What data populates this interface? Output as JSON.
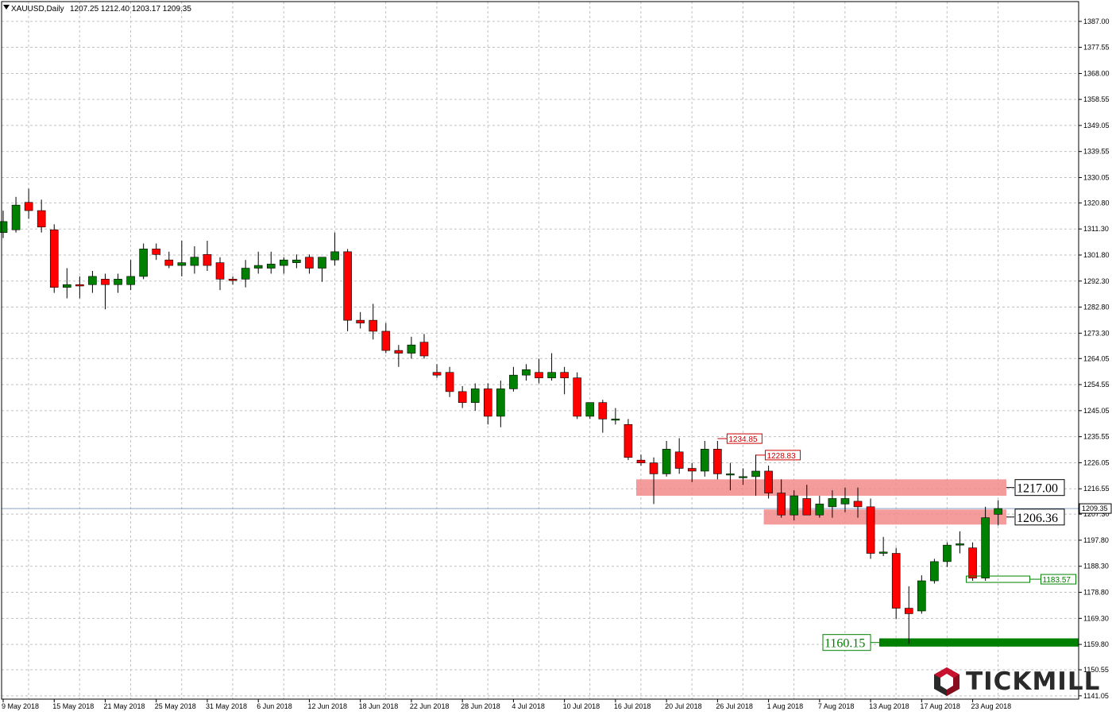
{
  "chart_data": {
    "type": "candlestick",
    "symbol_label": "XAUUSD,Daily",
    "ohlc_label": "1207.25 1212.40 1203.17 1209.35",
    "ylim": [
      1141.0,
      1389.0
    ],
    "y_ticks": [
      "1387.00",
      "1377.55",
      "1368.00",
      "1358.55",
      "1349.05",
      "1339.55",
      "1330.05",
      "1320.80",
      "1311.30",
      "1301.80",
      "1292.30",
      "1282.80",
      "1273.30",
      "1264.05",
      "1254.55",
      "1245.05",
      "1235.55",
      "1226.05",
      "1216.55",
      "1207.30",
      "1197.80",
      "1188.30",
      "1178.80",
      "1169.30",
      "1159.80",
      "1150.55",
      "1141.05"
    ],
    "x_ticks": [
      "9 May 2018",
      "15 May 2018",
      "21 May 2018",
      "25 May 2018",
      "31 May 2018",
      "6 Jun 2018",
      "12 Jun 2018",
      "18 Jun 2018",
      "22 Jun 2018",
      "28 Jun 2018",
      "4 Jul 2018",
      "10 Jul 2018",
      "16 Jul 2018",
      "20 Jul 2018",
      "26 Jul 2018",
      "1 Aug 2018",
      "7 Aug 2018",
      "13 Aug 2018",
      "17 Aug 2018",
      "23 Aug 2018"
    ],
    "candles": [
      {
        "o": 1310.0,
        "h": 1318.0,
        "l": 1308.0,
        "c": 1314.0
      },
      {
        "o": 1311.0,
        "h": 1323.0,
        "l": 1310.0,
        "c": 1320.0
      },
      {
        "o": 1321.0,
        "h": 1326.0,
        "l": 1315.0,
        "c": 1318.0
      },
      {
        "o": 1318.0,
        "h": 1322.0,
        "l": 1310.0,
        "c": 1312.0
      },
      {
        "o": 1311.0,
        "h": 1313.0,
        "l": 1288.0,
        "c": 1290.0
      },
      {
        "o": 1290.0,
        "h": 1297.0,
        "l": 1286.0,
        "c": 1291.0
      },
      {
        "o": 1291.0,
        "h": 1294.0,
        "l": 1286.0,
        "c": 1290.5
      },
      {
        "o": 1291.0,
        "h": 1296.0,
        "l": 1288.0,
        "c": 1294.0
      },
      {
        "o": 1293.0,
        "h": 1295.0,
        "l": 1282.0,
        "c": 1291.0
      },
      {
        "o": 1291.0,
        "h": 1295.0,
        "l": 1288.0,
        "c": 1293.0
      },
      {
        "o": 1291.0,
        "h": 1300.0,
        "l": 1289.0,
        "c": 1294.0
      },
      {
        "o": 1294.0,
        "h": 1306.0,
        "l": 1293.0,
        "c": 1304.0
      },
      {
        "o": 1304.0,
        "h": 1306.0,
        "l": 1300.0,
        "c": 1302.0
      },
      {
        "o": 1300.0,
        "h": 1303.0,
        "l": 1297.0,
        "c": 1298.0
      },
      {
        "o": 1298.0,
        "h": 1307.0,
        "l": 1294.0,
        "c": 1299.0
      },
      {
        "o": 1298.0,
        "h": 1305.0,
        "l": 1295.0,
        "c": 1301.0
      },
      {
        "o": 1302.0,
        "h": 1307.0,
        "l": 1296.0,
        "c": 1298.0
      },
      {
        "o": 1299.0,
        "h": 1301.0,
        "l": 1289.0,
        "c": 1293.0
      },
      {
        "o": 1293.0,
        "h": 1294.0,
        "l": 1291.0,
        "c": 1292.5
      },
      {
        "o": 1293.0,
        "h": 1300.0,
        "l": 1290.0,
        "c": 1297.0
      },
      {
        "o": 1297.0,
        "h": 1303.0,
        "l": 1295.0,
        "c": 1298.0
      },
      {
        "o": 1297.0,
        "h": 1303.0,
        "l": 1295.0,
        "c": 1298.5
      },
      {
        "o": 1298.0,
        "h": 1301.0,
        "l": 1295.0,
        "c": 1300.0
      },
      {
        "o": 1299.0,
        "h": 1302.0,
        "l": 1297.0,
        "c": 1300.0
      },
      {
        "o": 1301.0,
        "h": 1302.0,
        "l": 1295.0,
        "c": 1297.0
      },
      {
        "o": 1297.0,
        "h": 1301.0,
        "l": 1292.0,
        "c": 1301.0
      },
      {
        "o": 1300.0,
        "h": 1310.0,
        "l": 1298.0,
        "c": 1303.0
      },
      {
        "o": 1303.0,
        "h": 1304.0,
        "l": 1274.0,
        "c": 1278.0
      },
      {
        "o": 1278.0,
        "h": 1281.0,
        "l": 1275.0,
        "c": 1277.0
      },
      {
        "o": 1278.0,
        "h": 1284.0,
        "l": 1271.0,
        "c": 1274.0
      },
      {
        "o": 1274.0,
        "h": 1277.0,
        "l": 1266.0,
        "c": 1267.0
      },
      {
        "o": 1267.0,
        "h": 1269.0,
        "l": 1261.0,
        "c": 1266.0
      },
      {
        "o": 1266.0,
        "h": 1272.0,
        "l": 1264.0,
        "c": 1269.0
      },
      {
        "o": 1270.0,
        "h": 1273.0,
        "l": 1264.0,
        "c": 1265.0
      },
      {
        "o": 1259.0,
        "h": 1262.0,
        "l": 1257.0,
        "c": 1258.0
      },
      {
        "o": 1259.0,
        "h": 1261.0,
        "l": 1250.0,
        "c": 1252.0
      },
      {
        "o": 1252.0,
        "h": 1254.0,
        "l": 1246.0,
        "c": 1248.0
      },
      {
        "o": 1248.0,
        "h": 1255.0,
        "l": 1245.0,
        "c": 1253.0
      },
      {
        "o": 1253.0,
        "h": 1255.0,
        "l": 1240.0,
        "c": 1243.0
      },
      {
        "o": 1243.0,
        "h": 1256.0,
        "l": 1239.0,
        "c": 1253.0
      },
      {
        "o": 1253.0,
        "h": 1261.0,
        "l": 1252.0,
        "c": 1258.0
      },
      {
        "o": 1258.0,
        "h": 1262.0,
        "l": 1256.0,
        "c": 1260.0
      },
      {
        "o": 1259.0,
        "h": 1264.0,
        "l": 1255.0,
        "c": 1257.0
      },
      {
        "o": 1257.0,
        "h": 1266.0,
        "l": 1256.0,
        "c": 1259.0
      },
      {
        "o": 1259.0,
        "h": 1261.0,
        "l": 1251.0,
        "c": 1257.0
      },
      {
        "o": 1257.0,
        "h": 1259.0,
        "l": 1242.0,
        "c": 1243.0
      },
      {
        "o": 1243.0,
        "h": 1248.0,
        "l": 1242.0,
        "c": 1248.0
      },
      {
        "o": 1248.0,
        "h": 1249.0,
        "l": 1237.0,
        "c": 1242.0
      },
      {
        "o": 1242.0,
        "h": 1246.0,
        "l": 1240.0,
        "c": 1242.0
      },
      {
        "o": 1240.0,
        "h": 1242.0,
        "l": 1227.0,
        "c": 1228.0
      },
      {
        "o": 1227.0,
        "h": 1229.0,
        "l": 1225.0,
        "c": 1226.0
      },
      {
        "o": 1226.0,
        "h": 1228.0,
        "l": 1211.0,
        "c": 1222.0
      },
      {
        "o": 1222.0,
        "h": 1234.0,
        "l": 1221.0,
        "c": 1231.0
      },
      {
        "o": 1230.0,
        "h": 1235.0,
        "l": 1222.0,
        "c": 1224.0
      },
      {
        "o": 1224.0,
        "h": 1226.0,
        "l": 1219.0,
        "c": 1223.0
      },
      {
        "o": 1223.0,
        "h": 1234.0,
        "l": 1221.0,
        "c": 1231.0
      },
      {
        "o": 1231.0,
        "h": 1234.0,
        "l": 1220.0,
        "c": 1222.0
      },
      {
        "o": 1222.0,
        "h": 1226.0,
        "l": 1216.0,
        "c": 1222.0
      },
      {
        "o": 1221.0,
        "h": 1224.0,
        "l": 1218.0,
        "c": 1221.0
      },
      {
        "o": 1221.0,
        "h": 1229.0,
        "l": 1214.0,
        "c": 1223.0
      },
      {
        "o": 1223.0,
        "h": 1225.0,
        "l": 1213.0,
        "c": 1215.0
      },
      {
        "o": 1215.0,
        "h": 1220.0,
        "l": 1206.0,
        "c": 1207.0
      },
      {
        "o": 1207.0,
        "h": 1216.0,
        "l": 1205.0,
        "c": 1214.0
      },
      {
        "o": 1213.0,
        "h": 1218.0,
        "l": 1207.0,
        "c": 1207.0
      },
      {
        "o": 1207.0,
        "h": 1214.0,
        "l": 1206.0,
        "c": 1211.0
      },
      {
        "o": 1210.0,
        "h": 1216.0,
        "l": 1206.0,
        "c": 1213.0
      },
      {
        "o": 1211.0,
        "h": 1217.0,
        "l": 1208.0,
        "c": 1213.0
      },
      {
        "o": 1212.0,
        "h": 1217.0,
        "l": 1206.0,
        "c": 1210.0
      },
      {
        "o": 1210.0,
        "h": 1213.0,
        "l": 1191.0,
        "c": 1193.0
      },
      {
        "o": 1193.0,
        "h": 1199.0,
        "l": 1192.0,
        "c": 1193.5
      },
      {
        "o": 1193.0,
        "h": 1195.0,
        "l": 1169.0,
        "c": 1173.0
      },
      {
        "o": 1173.0,
        "h": 1181.0,
        "l": 1160.0,
        "c": 1171.0
      },
      {
        "o": 1172.0,
        "h": 1185.0,
        "l": 1171.0,
        "c": 1183.0
      },
      {
        "o": 1183.0,
        "h": 1191.0,
        "l": 1182.0,
        "c": 1190.0
      },
      {
        "o": 1190.0,
        "h": 1197.0,
        "l": 1188.0,
        "c": 1196.0
      },
      {
        "o": 1196.0,
        "h": 1201.0,
        "l": 1193.0,
        "c": 1196.5
      },
      {
        "o": 1195.0,
        "h": 1197.0,
        "l": 1183.0,
        "c": 1184.0
      },
      {
        "o": 1184.0,
        "h": 1210.0,
        "l": 1183.0,
        "c": 1206.0
      },
      {
        "o": 1207.25,
        "h": 1212.4,
        "l": 1203.17,
        "c": 1209.35
      }
    ],
    "current_price": "1209.35",
    "zones": [
      {
        "label": "1217.00",
        "y_low": 1214.0,
        "y_high": 1220.0,
        "from_candle": 50,
        "color": "#f28b8b"
      },
      {
        "label": "1206.36",
        "y_low": 1203.5,
        "y_high": 1209.0,
        "from_candle": 60,
        "color": "#f28b8b"
      }
    ],
    "resistance_marks": [
      {
        "label": "1234.85",
        "candle": 56,
        "value": 1234.85
      },
      {
        "label": "1228.83",
        "candle": 59,
        "value": 1228.83
      }
    ],
    "support_marks": [
      {
        "label": "1183.57",
        "candle": 76,
        "value": 1183.57
      }
    ],
    "support_zone": {
      "label": "1160.15",
      "y_low": 1159.0,
      "y_high": 1162.0,
      "color": "#008000"
    },
    "colors": {
      "bull": "#008000",
      "bear": "#ff0000",
      "grid": "#c0c0c0",
      "price_line": "#8aa0c8"
    }
  },
  "brand": {
    "name": "TICKMILL",
    "logo_colors": [
      "#c8102e",
      "#2a2a2a"
    ]
  }
}
